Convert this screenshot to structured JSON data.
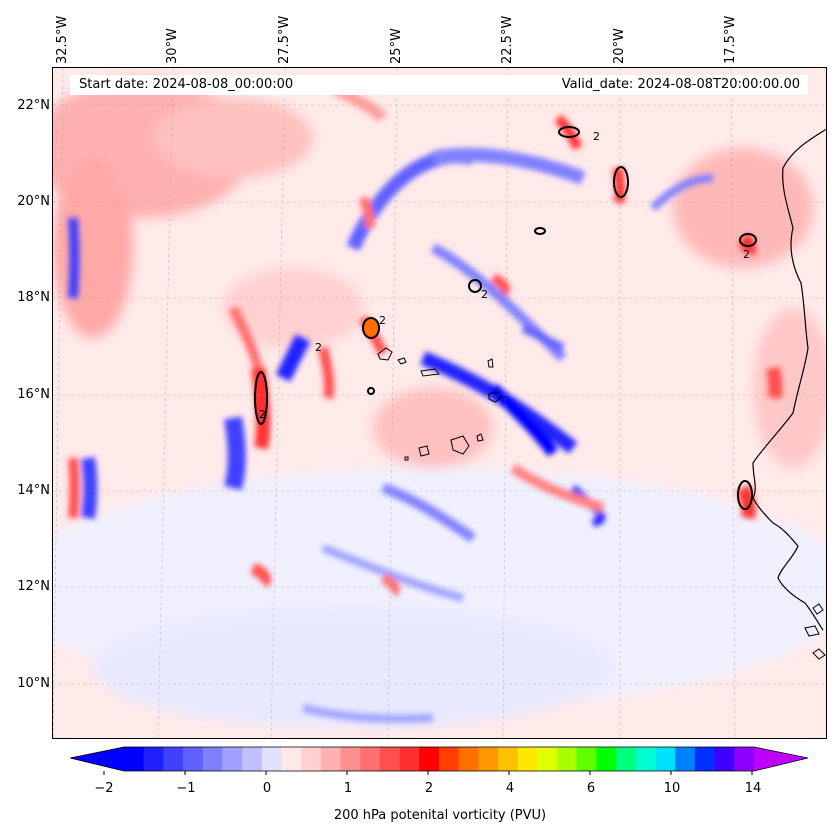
{
  "map": {
    "start_date_text": "Start date: 2024-08-08_00:00:00",
    "valid_date_text": "Valid_date: 2024-08-08T20:00:00.00",
    "lon_labels": [
      "32.5°W",
      "30°W",
      "27.5°W",
      "25°W",
      "22.5°W",
      "20°W",
      "17.5°W"
    ],
    "lat_labels": [
      "22°N",
      "20°N",
      "18°N",
      "16°N",
      "14°N",
      "12°N",
      "10°N"
    ],
    "contour_label": "2",
    "land_outline_color": "#000000"
  },
  "colorbar": {
    "label": "200 hPa potenital vorticity (PVU)",
    "tick_labels": [
      "−2",
      "−1",
      "0",
      "1",
      "2",
      "4",
      "6",
      "10",
      "14"
    ],
    "colors": [
      "#0000ff",
      "#2020ff",
      "#4040ff",
      "#6060ff",
      "#8080ff",
      "#a0a0ff",
      "#c0c0ff",
      "#e0e0ff",
      "#ffe8e8",
      "#ffd0d0",
      "#ffb0b0",
      "#ff9090",
      "#ff7070",
      "#ff5050",
      "#ff3030",
      "#ff0000",
      "#ff4000",
      "#ff7000",
      "#ff9800",
      "#ffc000",
      "#ffe800",
      "#e0ff00",
      "#a8ff00",
      "#60ff00",
      "#00ff00",
      "#00ff80",
      "#00ffd0",
      "#00e0ff",
      "#0080ff",
      "#0030ff",
      "#4000ff",
      "#9000ff"
    ],
    "under_color": "#0000ff",
    "over_color": "#c000ff"
  }
}
